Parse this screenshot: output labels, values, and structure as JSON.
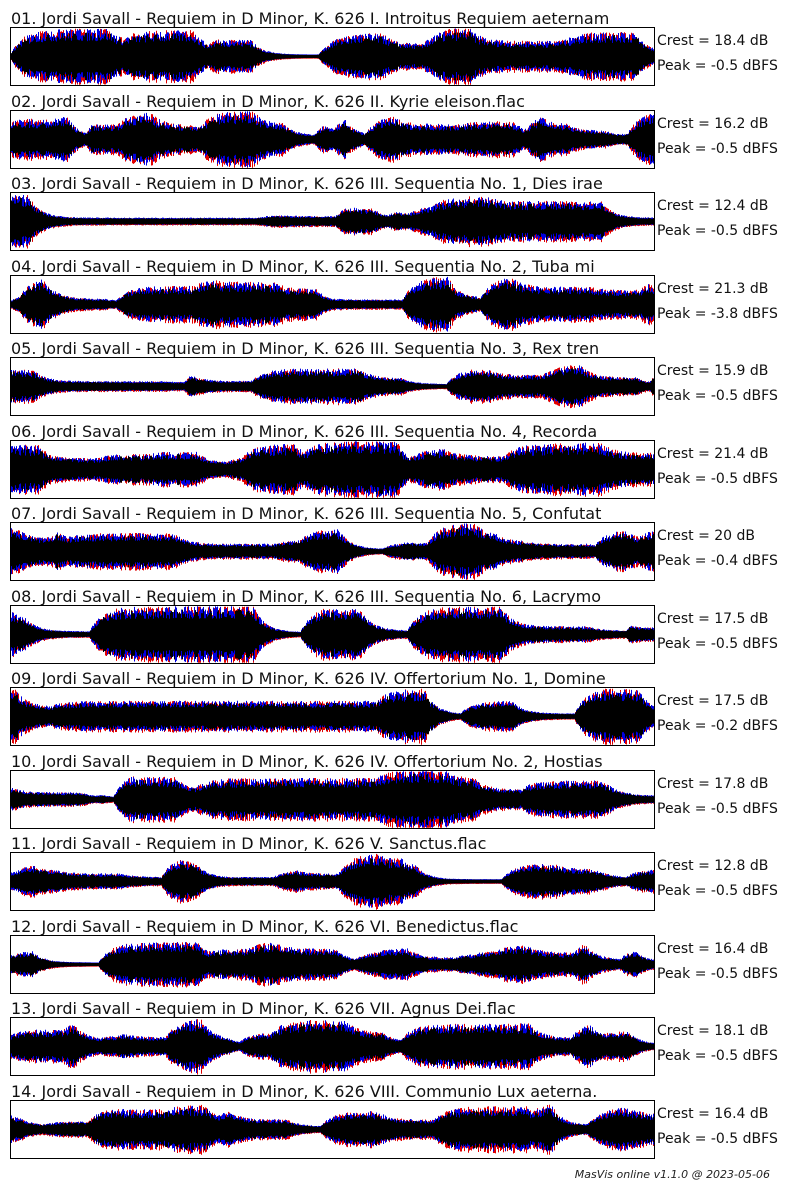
{
  "tracks": [
    {
      "title": "01. Jordi Savall - Requiem in D Minor, K. 626 I. Introitus Requiem aeternam",
      "crest": "Crest = 18.4 dB",
      "peak": "Peak = -0.5 dBFS"
    },
    {
      "title": "02. Jordi Savall - Requiem in D Minor, K. 626 II. Kyrie eleison.flac",
      "crest": "Crest = 16.2 dB",
      "peak": "Peak = -0.5 dBFS"
    },
    {
      "title": "03. Jordi Savall - Requiem in D Minor, K. 626 III. Sequentia No. 1, Dies irae",
      "crest": "Crest = 12.4 dB",
      "peak": "Peak = -0.5 dBFS"
    },
    {
      "title": "04. Jordi Savall - Requiem in D Minor, K. 626 III. Sequentia No. 2, Tuba mi",
      "crest": "Crest = 21.3 dB",
      "peak": "Peak = -3.8 dBFS"
    },
    {
      "title": "05. Jordi Savall - Requiem in D Minor, K. 626 III. Sequentia No. 3, Rex tren",
      "crest": "Crest = 15.9 dB",
      "peak": "Peak = -0.5 dBFS"
    },
    {
      "title": "06. Jordi Savall - Requiem in D Minor, K. 626 III. Sequentia No. 4, Recorda",
      "crest": "Crest = 21.4 dB",
      "peak": "Peak = -0.5 dBFS"
    },
    {
      "title": "07. Jordi Savall - Requiem in D Minor, K. 626 III. Sequentia No. 5, Confutat",
      "crest": "Crest = 20 dB",
      "peak": "Peak = -0.4 dBFS"
    },
    {
      "title": "08. Jordi Savall - Requiem in D Minor, K. 626 III. Sequentia No. 6, Lacrymo",
      "crest": "Crest = 17.5 dB",
      "peak": "Peak = -0.5 dBFS"
    },
    {
      "title": "09. Jordi Savall - Requiem in D Minor, K. 626 IV. Offertorium No. 1, Domine",
      "crest": "Crest = 17.5 dB",
      "peak": "Peak = -0.2 dBFS"
    },
    {
      "title": "10. Jordi Savall - Requiem in D Minor, K. 626 IV. Offertorium No. 2, Hostias",
      "crest": "Crest = 17.8 dB",
      "peak": "Peak = -0.5 dBFS"
    },
    {
      "title": "11. Jordi Savall - Requiem in D Minor, K. 626 V. Sanctus.flac",
      "crest": "Crest = 12.8 dB",
      "peak": "Peak = -0.5 dBFS"
    },
    {
      "title": "12. Jordi Savall - Requiem in D Minor, K. 626 VI. Benedictus.flac",
      "crest": "Crest = 16.4 dB",
      "peak": "Peak = -0.5 dBFS"
    },
    {
      "title": "13. Jordi Savall - Requiem in D Minor, K. 626 VII. Agnus Dei.flac",
      "crest": "Crest = 18.1 dB",
      "peak": "Peak = -0.5 dBFS"
    },
    {
      "title": "14. Jordi Savall - Requiem in D Minor, K. 626 VIII. Communio Lux aeterna.",
      "crest": "Crest = 16.4 dB",
      "peak": "Peak = -0.5 dBFS"
    }
  ],
  "footer": "MasVis online v1.1.0 @ 2023-05-06"
}
